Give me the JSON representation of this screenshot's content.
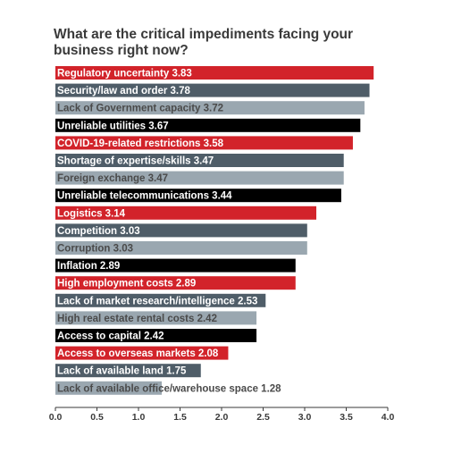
{
  "chart_data": {
    "type": "bar",
    "orientation": "horizontal",
    "title": "What are the critical impediments facing your business right now?",
    "xlim": [
      0,
      4.0
    ],
    "xticks": [
      "0.0",
      "0.5",
      "1.0",
      "1.5",
      "2.0",
      "2.5",
      "3.0",
      "3.5",
      "4.0"
    ],
    "grid": false,
    "legend": "none",
    "categories": [
      "Regulatory uncertainty",
      "Security/law and order",
      "Lack of Government capacity",
      "Unreliable utilities",
      "COVID-19-related restrictions",
      "Shortage of expertise/skills",
      "Foreign exchange",
      "Unreliable telecommunications",
      "Logistics",
      "Competition",
      "Corruption",
      "Inflation",
      "High employment costs",
      "Lack of market research/intelligence",
      "High real estate rental costs",
      "Access to capital",
      "Access to overseas markets",
      "Lack of available land",
      "Lack of available office/warehouse space"
    ],
    "values": [
      3.83,
      3.78,
      3.72,
      3.67,
      3.58,
      3.47,
      3.47,
      3.44,
      3.14,
      3.03,
      3.03,
      2.89,
      2.89,
      2.53,
      2.42,
      2.42,
      2.08,
      1.75,
      1.28
    ],
    "bar_colors": [
      "#d2232a",
      "#4f5d68",
      "#9aa7b0",
      "#000000",
      "#d2232a",
      "#4f5d68",
      "#9aa7b0",
      "#000000",
      "#d2232a",
      "#4f5d68",
      "#9aa7b0",
      "#000000",
      "#d2232a",
      "#4f5d68",
      "#9aa7b0",
      "#000000",
      "#d2232a",
      "#4f5d68",
      "#9aa7b0"
    ]
  }
}
